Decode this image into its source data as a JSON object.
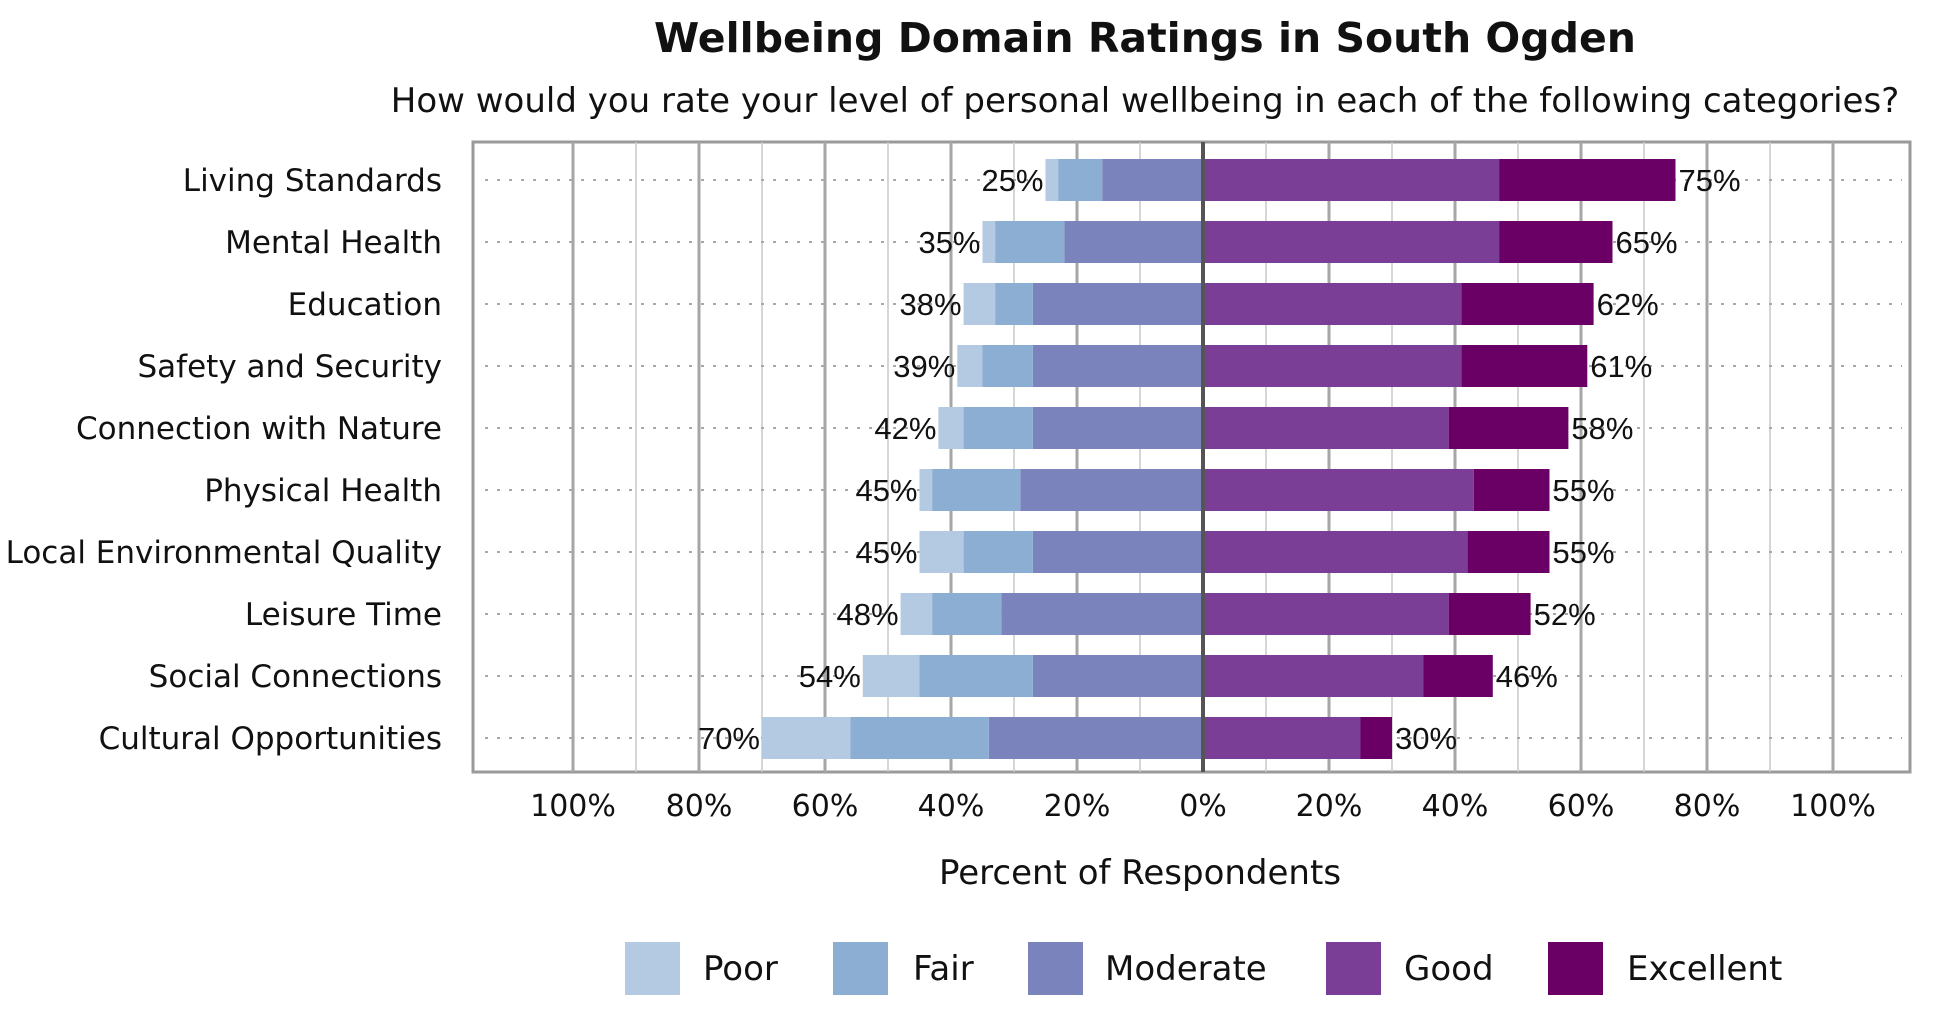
{
  "chart_data": {
    "type": "bar",
    "orientation": "horizontal-diverging",
    "title": "Wellbeing Domain Ratings in South Ogden",
    "subtitle": "How would you rate your level of personal wellbeing in each of the following categories?",
    "xlabel": "Percent of Respondents",
    "ylabel": "",
    "xlim": [
      -100,
      100
    ],
    "x_ticks": [
      {
        "v": -100,
        "label": "100%"
      },
      {
        "v": -80,
        "label": "80%"
      },
      {
        "v": -60,
        "label": "60%"
      },
      {
        "v": -40,
        "label": "40%"
      },
      {
        "v": -20,
        "label": "20%"
      },
      {
        "v": 0,
        "label": "0%"
      },
      {
        "v": 20,
        "label": "20%"
      },
      {
        "v": 40,
        "label": "40%"
      },
      {
        "v": 60,
        "label": "60%"
      },
      {
        "v": 80,
        "label": "80%"
      },
      {
        "v": 100,
        "label": "100%"
      }
    ],
    "grid": true,
    "legend_position": "bottom",
    "categories": [
      "Living Standards",
      "Mental Health",
      "Education",
      "Safety and Security",
      "Connection with Nature",
      "Physical Health",
      "Local Environmental Quality",
      "Leisure Time",
      "Social Connections",
      "Cultural Opportunities"
    ],
    "series": [
      {
        "name": "Poor",
        "color": "#b4c9e2",
        "side": "negative",
        "values": [
          2,
          2,
          5,
          4,
          4,
          2,
          7,
          5,
          9,
          14
        ]
      },
      {
        "name": "Fair",
        "color": "#8daed3",
        "side": "negative",
        "values": [
          7,
          11,
          6,
          8,
          11,
          14,
          11,
          11,
          18,
          22
        ]
      },
      {
        "name": "Moderate",
        "color": "#7a83bc",
        "side": "negative",
        "values": [
          16,
          22,
          27,
          27,
          27,
          29,
          27,
          32,
          27,
          34
        ]
      },
      {
        "name": "Good",
        "color": "#7a3e96",
        "side": "positive",
        "values": [
          47,
          47,
          41,
          41,
          39,
          43,
          42,
          39,
          35,
          25
        ]
      },
      {
        "name": "Excellent",
        "color": "#6a0065",
        "side": "positive",
        "values": [
          28,
          18,
          21,
          20,
          19,
          12,
          13,
          13,
          11,
          5
        ]
      }
    ],
    "left_totals": [
      "25%",
      "35%",
      "38%",
      "39%",
      "42%",
      "45%",
      "45%",
      "48%",
      "54%",
      "70%"
    ],
    "right_totals": [
      "75%",
      "65%",
      "62%",
      "61%",
      "58%",
      "55%",
      "55%",
      "52%",
      "46%",
      "30%"
    ]
  }
}
